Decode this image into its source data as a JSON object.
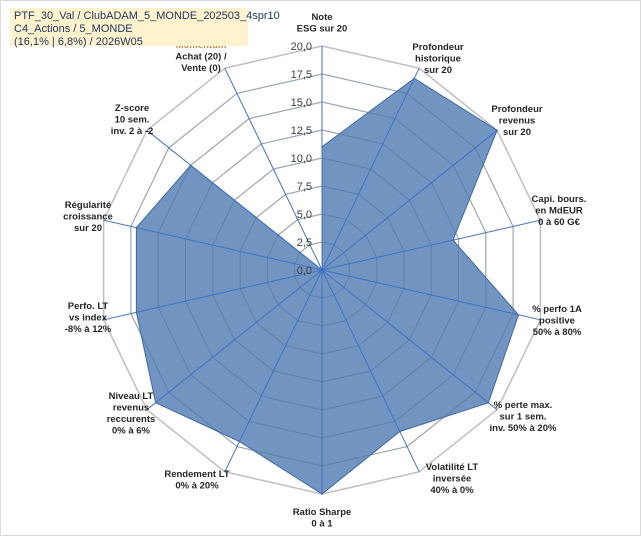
{
  "title": {
    "line1": "PTF_30_Val / ClubADAM_5_MONDE_202503_4spr10",
    "line2": "C4_Actions / 5_MONDE",
    "line3": "(16,1% | 6,8%) / 2026W05"
  },
  "colors": {
    "fill": "#5f85b8",
    "stroke": "#3f6aa6",
    "grid": "#bfbfbf",
    "radial": "#4472c4",
    "title_bg": "#fff2cc",
    "title_text": "#1f3864",
    "momentum_label": "#c09040"
  },
  "chart_data": {
    "type": "radar",
    "title": "",
    "rlim": [
      0,
      20
    ],
    "ticks": [
      "0,0",
      "2,5",
      "5,0",
      "7,5",
      "10,0",
      "12,5",
      "15,0",
      "17,5",
      "20,0"
    ],
    "grid": true,
    "axes": [
      {
        "label": [
          "Note",
          "ESG sur 20"
        ],
        "value": 11
      },
      {
        "label": [
          "Profondeur",
          "historique",
          "sur 20"
        ],
        "value": 19
      },
      {
        "label": [
          "Profondeur",
          "revenus",
          "sur 20"
        ],
        "value": 20
      },
      {
        "label": [
          "Capi. bours.",
          "en MdEUR",
          "0 à 60 G€"
        ],
        "value": 12
      },
      {
        "label": [
          "% perfo 1A",
          "positive",
          "50% à 80%"
        ],
        "value": 18
      },
      {
        "label": [
          "% perte max.",
          "sur 1 sem.",
          "inv. 50% à 20%"
        ],
        "value": 19
      },
      {
        "label": [
          "Volatilité LT",
          "inversée",
          "40% à 0%"
        ],
        "value": 16
      },
      {
        "label": [
          "Ratio Sharpe",
          "0 à 1"
        ],
        "value": 20
      },
      {
        "label": [
          "Rendement LT",
          "0% à 20%"
        ],
        "value": 17
      },
      {
        "label": [
          "Niveau LT",
          "revenus",
          "reccurents",
          "0% à 6%"
        ],
        "value": 19
      },
      {
        "label": [
          "Perfo. LT",
          "vs index",
          "-8% à 12%"
        ],
        "value": 17
      },
      {
        "label": [
          "Régularité",
          "croissance",
          "sur 20"
        ],
        "value": 17
      },
      {
        "label": [
          "Z-score",
          "10 sem.",
          "inv. 2 à -2"
        ],
        "value": 15
      },
      {
        "label": [
          "Momentum",
          "Achat (20) /",
          "Vente (0)"
        ],
        "value": 0
      }
    ],
    "series": [
      {
        "name": "",
        "values": [
          11,
          19,
          20,
          12,
          18,
          19,
          16,
          20,
          17,
          19,
          17,
          17,
          15,
          0
        ]
      }
    ]
  }
}
